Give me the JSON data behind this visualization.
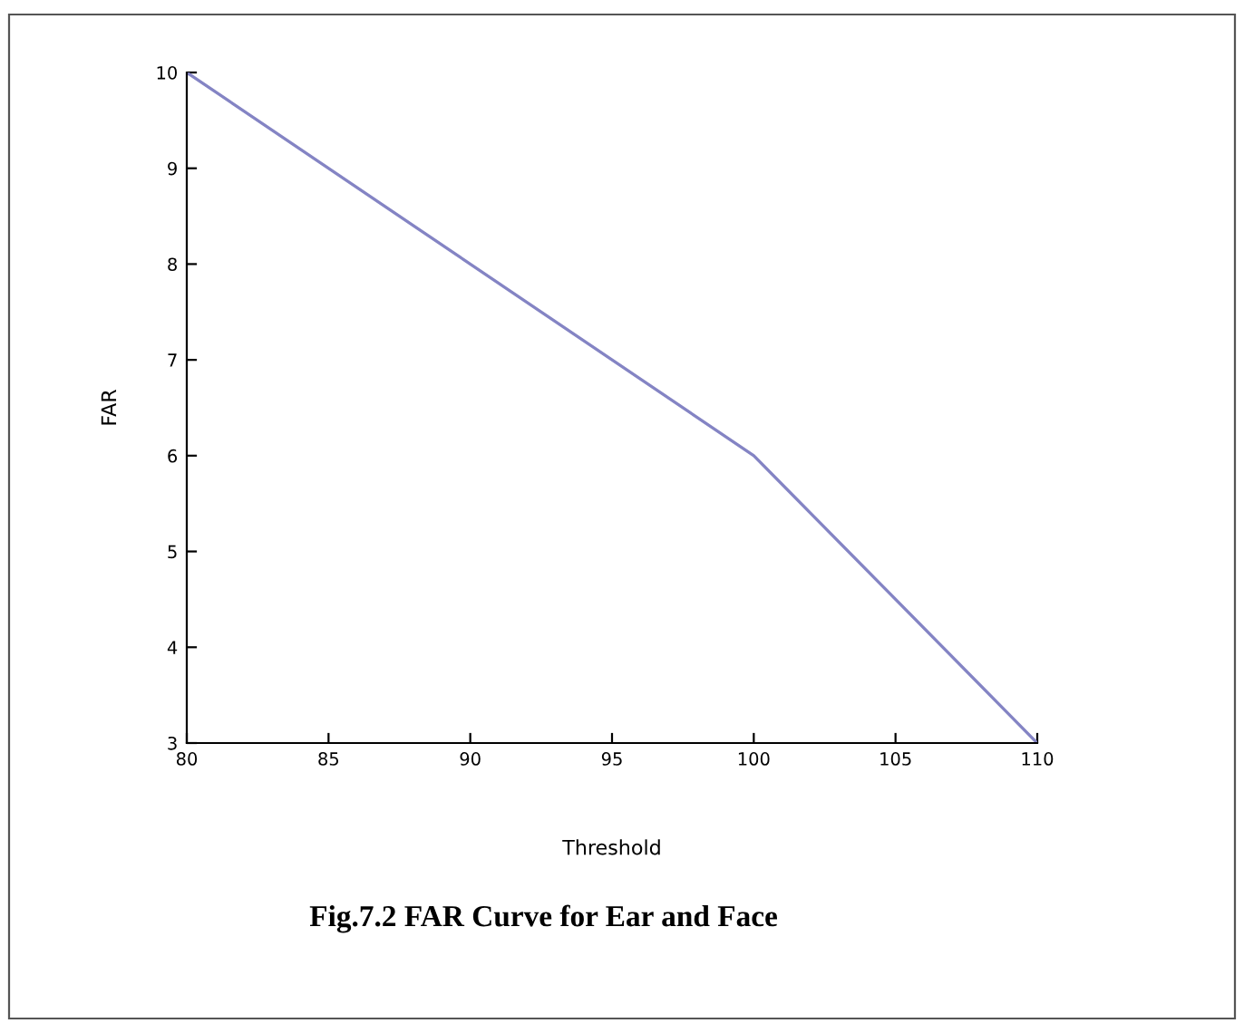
{
  "chart_data": {
    "type": "line",
    "title": "Fig.7.2 FAR Curve for Ear and Face",
    "xlabel": "Threshold",
    "ylabel": "FAR",
    "x": [
      80,
      100,
      110
    ],
    "series": [
      {
        "color": "#8484c4",
        "values": [
          10,
          6,
          3
        ]
      }
    ],
    "xlim": [
      80,
      110
    ],
    "xticks": [
      80,
      85,
      90,
      95,
      100,
      105,
      110
    ],
    "ylim": [
      3,
      10
    ],
    "yticks": [
      3,
      4,
      5,
      6,
      7,
      8,
      9,
      10
    ],
    "grid": false,
    "legend": false,
    "marker": "none",
    "line_style": "solid"
  }
}
